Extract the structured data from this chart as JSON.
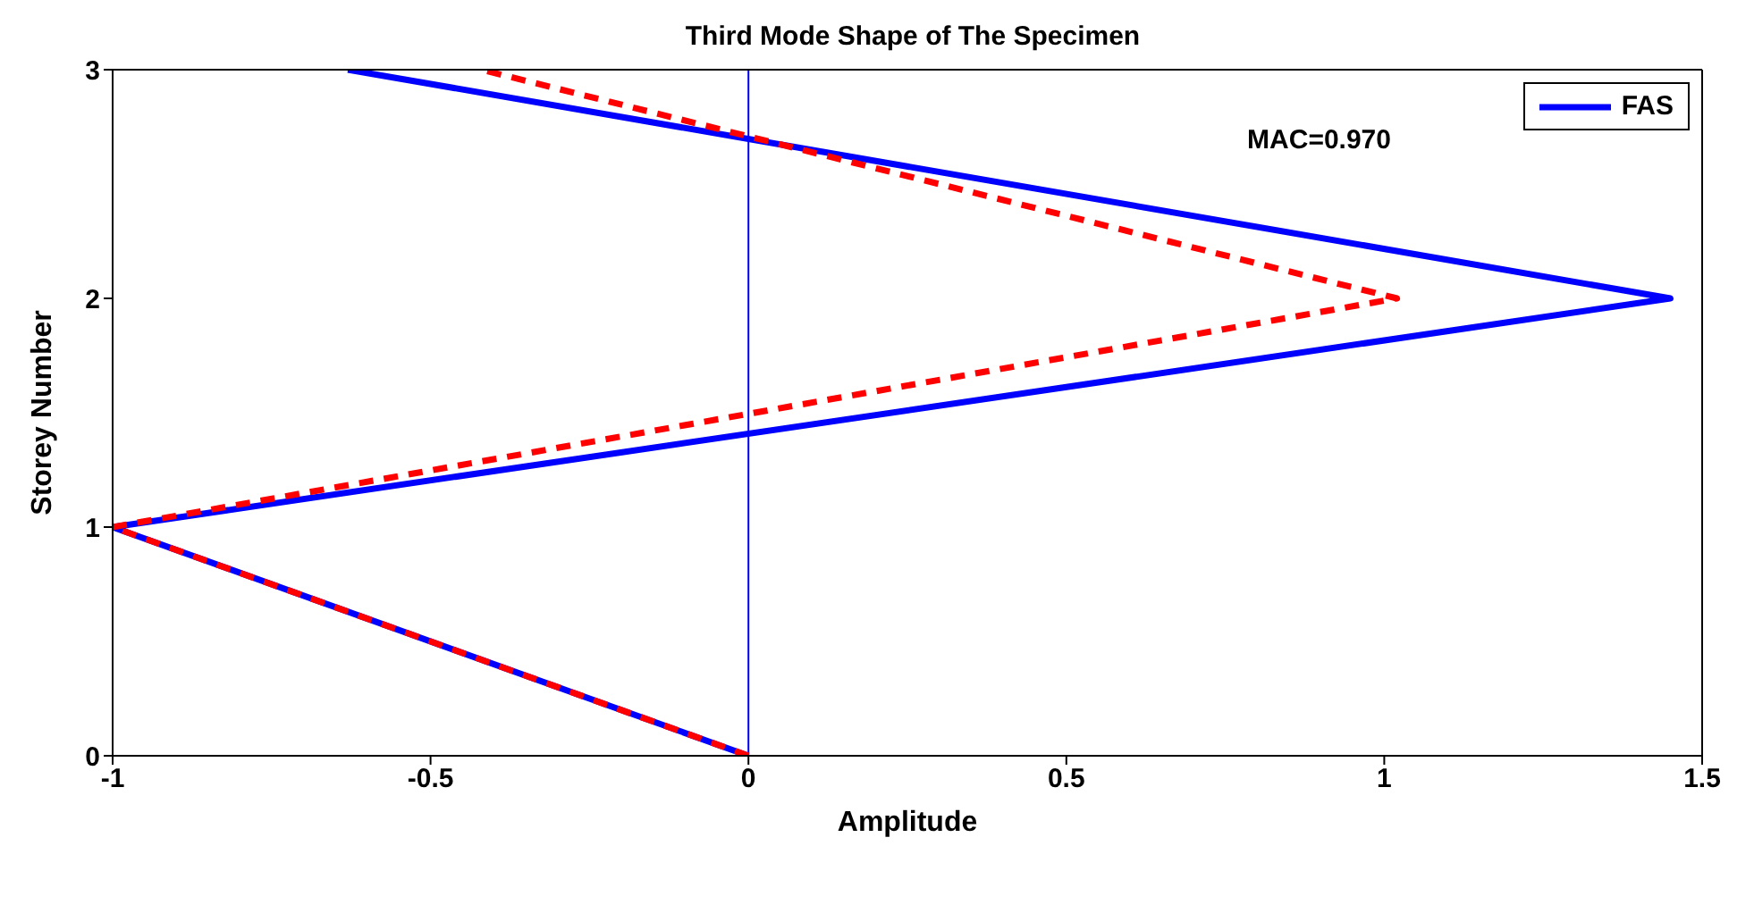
{
  "chart_data": {
    "type": "line",
    "title": "Third Mode Shape of The Specimen",
    "xlabel": "Amplitude",
    "ylabel": "Storey Number",
    "series": [
      {
        "name": "FAS",
        "color": "#0000ff",
        "line_style": "solid",
        "x": [
          0,
          -1,
          1.45,
          -0.63
        ],
        "values": [
          0,
          1,
          2,
          3
        ]
      },
      {
        "color": "#ff0000",
        "line_style": "dashed",
        "x": [
          0,
          -1,
          1.02,
          -0.42
        ],
        "values": [
          0,
          1,
          2,
          3
        ]
      }
    ],
    "xlim": [
      -1,
      1.5
    ],
    "xticks": [
      -1,
      -0.5,
      0,
      0.5,
      1,
      1.5
    ],
    "ylim": [
      0,
      3
    ],
    "yticks": [
      0,
      1,
      2,
      3
    ],
    "ref_lines": [
      {
        "axis": "x",
        "value": 0,
        "color": "#0000ff"
      }
    ],
    "annotations": [
      "MAC=0.970"
    ],
    "legend": "top right"
  }
}
